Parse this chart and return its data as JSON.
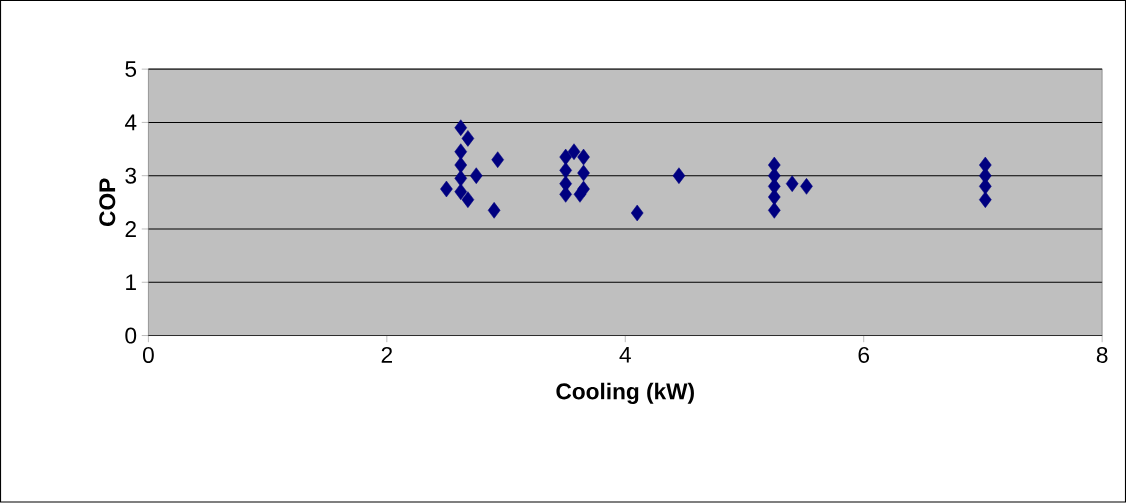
{
  "chart_data": {
    "type": "scatter",
    "xlabel": "Cooling (kW)",
    "ylabel": "COP",
    "x": [
      2.62,
      2.62,
      2.62,
      2.62,
      2.62,
      2.68,
      2.68,
      2.75,
      2.5,
      2.93,
      2.9,
      3.5,
      3.5,
      3.5,
      3.5,
      3.57,
      3.65,
      3.65,
      3.65,
      3.62,
      4.1,
      4.45,
      5.25,
      5.25,
      5.25,
      5.25,
      5.25,
      5.4,
      5.52,
      7.02,
      7.02,
      7.02,
      7.02
    ],
    "values": [
      3.9,
      3.45,
      3.2,
      2.95,
      2.7,
      3.7,
      2.55,
      3.0,
      2.75,
      3.3,
      2.35,
      3.35,
      3.1,
      2.85,
      2.65,
      3.45,
      3.35,
      3.05,
      2.75,
      2.65,
      2.3,
      3.0,
      3.2,
      3.0,
      2.8,
      2.6,
      2.35,
      2.85,
      2.8,
      3.2,
      3.0,
      2.8,
      2.55
    ],
    "color": "#000080",
    "marker": "diamond",
    "xlim": [
      0,
      8
    ],
    "ylim": [
      0,
      5
    ],
    "xticks": [
      0,
      2,
      4,
      6,
      8
    ],
    "yticks": [
      0,
      1,
      2,
      3,
      4,
      5
    ],
    "grid": "y"
  }
}
